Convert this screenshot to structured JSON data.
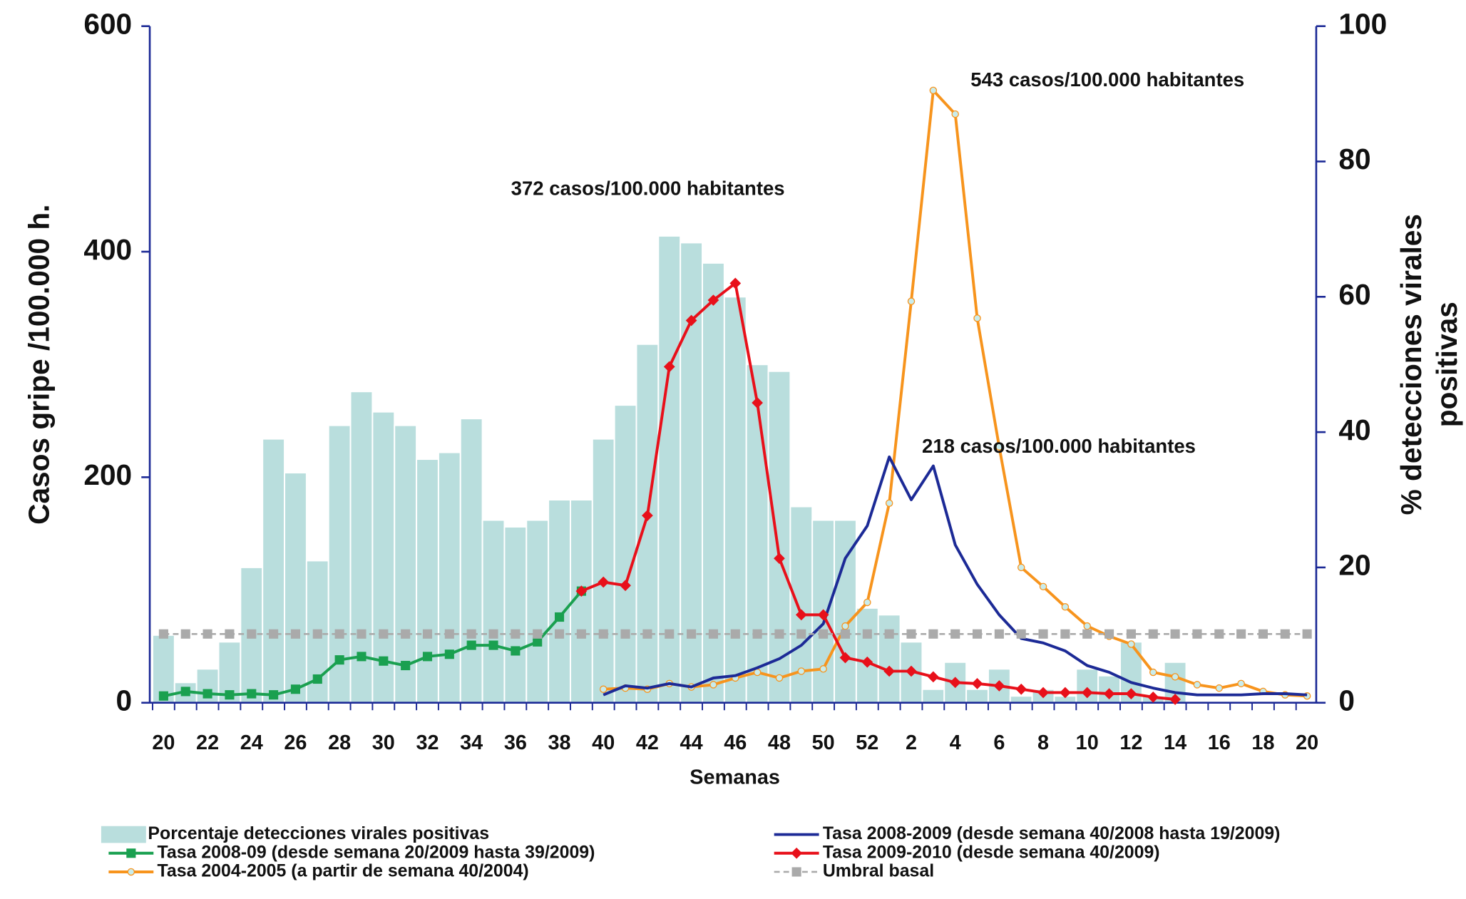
{
  "chart_data": {
    "type": "combo",
    "xlabel": "Semanas",
    "ylabel": "Casos gripe /100.000 h.",
    "y2label": [
      "% detecciones virales",
      "positivas"
    ],
    "categories": [
      "20",
      null,
      "22",
      null,
      "24",
      null,
      "26",
      null,
      "28",
      null,
      "30",
      null,
      "32",
      null,
      "34",
      null,
      "36",
      null,
      "38",
      null,
      "40",
      null,
      "42",
      null,
      "44",
      null,
      "46",
      null,
      "48",
      null,
      "50",
      null,
      "52",
      null,
      "2",
      null,
      "4",
      null,
      "6",
      null,
      "8",
      null,
      "10",
      null,
      "12",
      null,
      "14",
      null,
      "16",
      null,
      "18",
      null,
      "20"
    ],
    "ylim": [
      0,
      600
    ],
    "yticks": [
      0,
      200,
      400,
      600
    ],
    "y2lim": [
      0,
      100
    ],
    "y2ticks": [
      0,
      20,
      40,
      60,
      80,
      100
    ],
    "series": [
      {
        "name": "Porcentaje detecciones virales positivas",
        "type": "bar",
        "axis": "y2",
        "color": "#b9dedd",
        "values": [
          10,
          3,
          5,
          9,
          20,
          39,
          34,
          21,
          41,
          46,
          43,
          41,
          36,
          37,
          42,
          27,
          26,
          27,
          30,
          30,
          39,
          44,
          53,
          69,
          68,
          65,
          60,
          50,
          49,
          29,
          27,
          27,
          14,
          13,
          9,
          2,
          6,
          2,
          5,
          1,
          2,
          1,
          5,
          4,
          9,
          1,
          6,
          0,
          0,
          0,
          0,
          0,
          0
        ]
      },
      {
        "name": "Tasa 2008-09 (desde semana 20/2009 hasta 39/2009)",
        "type": "line",
        "color": "#1aa050",
        "marker": "square",
        "values": [
          6,
          10,
          8,
          7,
          8,
          7,
          12,
          21,
          38,
          41,
          37,
          33,
          41,
          43,
          51,
          51,
          46,
          54,
          76,
          99,
          null,
          null,
          null,
          null,
          null,
          null,
          null,
          null,
          null,
          null,
          null,
          null,
          null,
          null,
          null,
          null,
          null,
          null,
          null,
          null,
          null,
          null,
          null,
          null,
          null,
          null,
          null,
          null,
          null,
          null,
          null,
          null,
          null
        ]
      },
      {
        "name": "Tasa 2004-2005 (a partir de semana 40/2004)",
        "type": "line",
        "color": "#f7941d",
        "marker": "dot",
        "values": [
          null,
          null,
          null,
          null,
          null,
          null,
          null,
          null,
          null,
          null,
          null,
          null,
          null,
          null,
          null,
          null,
          null,
          null,
          null,
          null,
          12,
          13,
          12,
          17,
          14,
          16,
          22,
          27,
          22,
          28,
          30,
          68,
          89,
          177,
          356,
          543,
          522,
          341,
          227,
          120,
          103,
          85,
          68,
          59,
          52,
          27,
          23,
          16,
          13,
          17,
          10,
          7,
          6
        ]
      },
      {
        "name": "Tasa 2008-2009 (desde semana 40/2008 hasta 19/2009)",
        "type": "line",
        "color": "#1c2a96",
        "marker": "none",
        "values": [
          null,
          null,
          null,
          null,
          null,
          null,
          null,
          null,
          null,
          null,
          null,
          null,
          null,
          null,
          null,
          null,
          null,
          null,
          null,
          null,
          7,
          15,
          13,
          17,
          14,
          22,
          24,
          31,
          39,
          51,
          70,
          128,
          157,
          218,
          180,
          210,
          140,
          105,
          78,
          57,
          53,
          46,
          33,
          27,
          18,
          13,
          9,
          7,
          7,
          7,
          8,
          8,
          7
        ]
      },
      {
        "name": "Tasa 2009-2010 (desde semana 40/2009)",
        "type": "line",
        "color": "#e8101a",
        "marker": "diamond",
        "values": [
          null,
          null,
          null,
          null,
          null,
          null,
          null,
          null,
          null,
          null,
          null,
          null,
          null,
          null,
          null,
          null,
          null,
          null,
          null,
          99,
          107,
          104,
          166,
          298,
          339,
          357,
          372,
          266,
          128,
          78,
          78,
          40,
          36,
          28,
          28,
          23,
          18,
          17,
          15,
          12,
          9,
          9,
          9,
          8,
          8,
          5,
          3,
          null,
          null,
          null,
          null,
          null,
          null
        ]
      },
      {
        "name": "Umbral basal",
        "type": "line",
        "color": "#aaaaaa",
        "marker": "square",
        "dashed": true,
        "values": [
          61,
          61,
          61,
          61,
          61,
          61,
          61,
          61,
          61,
          61,
          61,
          61,
          61,
          61,
          61,
          61,
          61,
          61,
          61,
          61,
          61,
          61,
          61,
          61,
          61,
          61,
          61,
          61,
          61,
          61,
          61,
          61,
          61,
          61,
          61,
          61,
          61,
          61,
          61,
          61,
          61,
          61,
          61,
          61,
          61,
          61,
          61,
          61,
          61,
          61,
          61,
          61,
          61
        ]
      }
    ],
    "annotations": [
      {
        "text": "372 casos/100.000 habitantes",
        "series": 4,
        "index": 26
      },
      {
        "text": "543 casos/100.000 habitantes",
        "series": 2,
        "index": 35
      },
      {
        "text": "218 casos/100.000 habitantes",
        "series": 3,
        "index": 33
      }
    ]
  }
}
